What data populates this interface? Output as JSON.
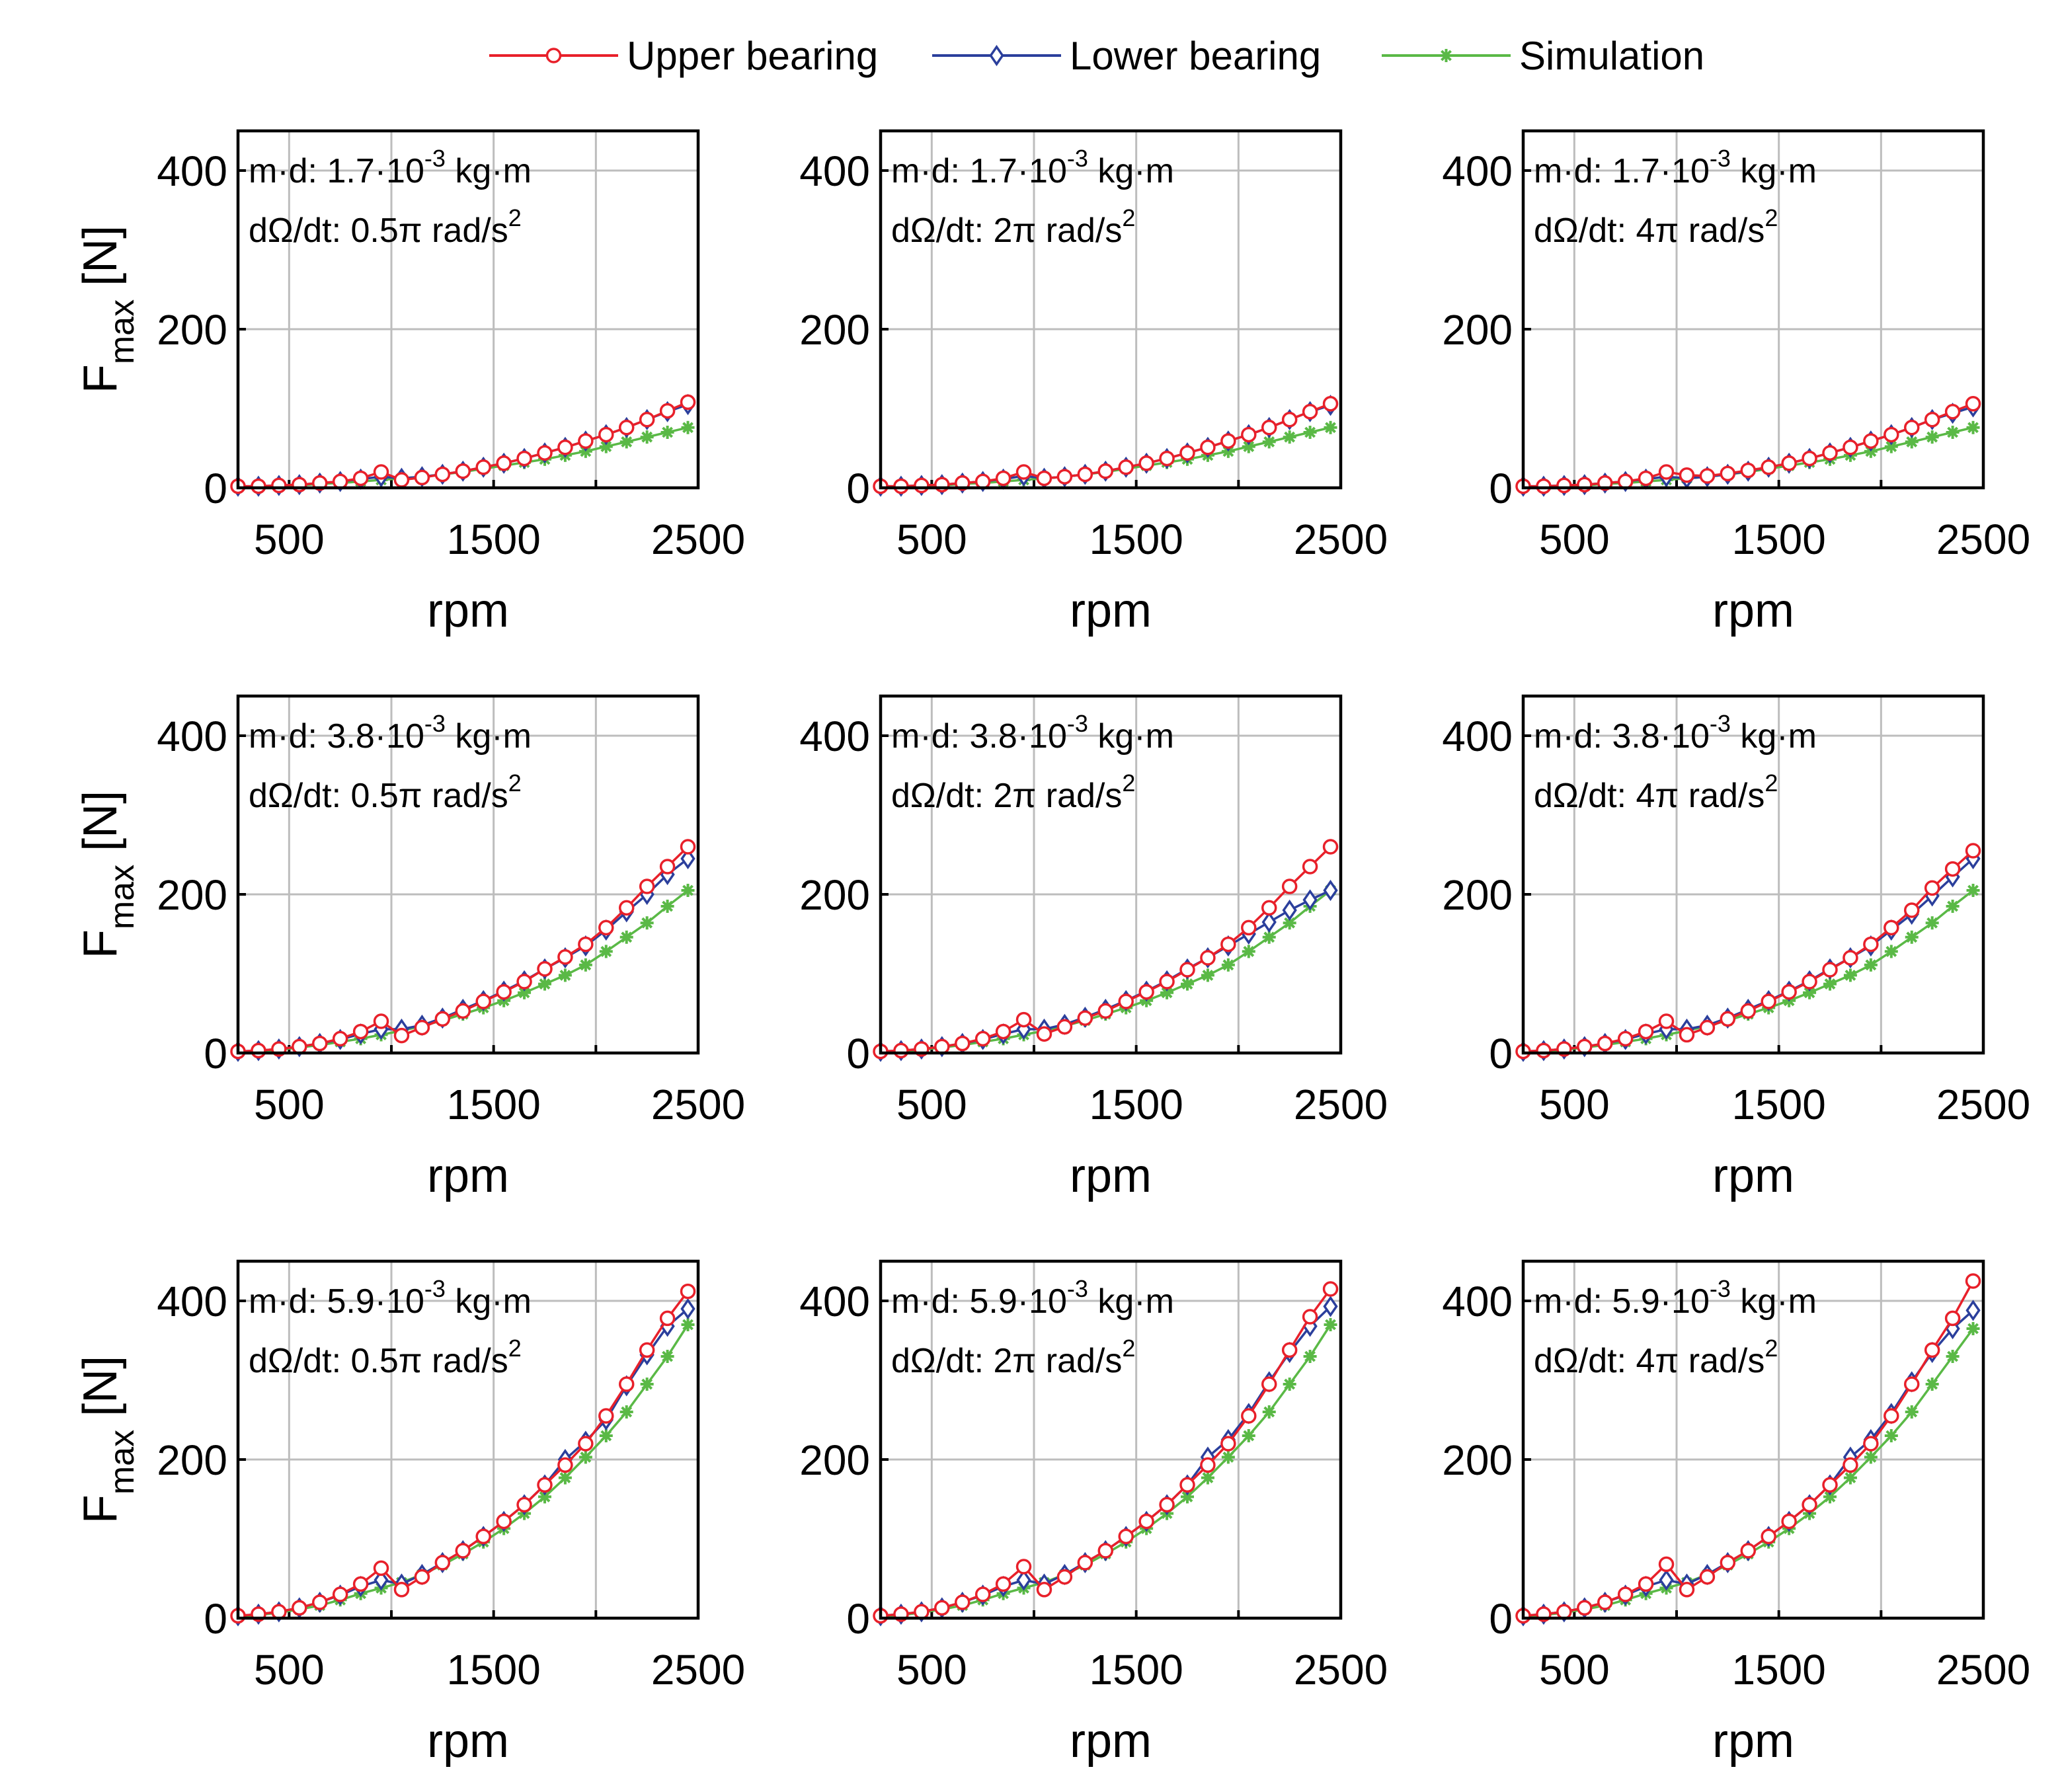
{
  "chart_data": {
    "type": "line",
    "layout": "3x3 grid",
    "xlabel": "rpm",
    "ylabel": "F_max [N]",
    "ylabel_main": "F",
    "ylabel_sub": "max",
    "ylabel_unit": "[N]",
    "xlim": [
      250,
      2500
    ],
    "ylim": [
      0,
      450
    ],
    "x_ticks": [
      500,
      1500,
      2500
    ],
    "y_ticks": [
      0,
      200,
      400
    ],
    "grid": true,
    "legend_position": "top-center",
    "legend": [
      {
        "name": "Upper bearing",
        "color": "#e8202a",
        "marker": "circle"
      },
      {
        "name": "Lower bearing",
        "color": "#2b3f9c",
        "marker": "diamond"
      },
      {
        "name": "Simulation",
        "color": "#5ab946",
        "marker": "asterisk"
      }
    ],
    "x": [
      250,
      350,
      450,
      550,
      650,
      750,
      850,
      950,
      1050,
      1150,
      1250,
      1350,
      1450,
      1550,
      1650,
      1750,
      1850,
      1950,
      2050,
      2150,
      2250,
      2350,
      2450
    ],
    "panels": [
      {
        "md_prefix": "m·d: 1.7·10",
        "md_exp": "-3",
        "md_unit": "kg·m",
        "rate_prefix": "dΩ/dt: 0.5π rad/s",
        "rate_exp": "2",
        "series": [
          {
            "name": "Upper bearing",
            "values": [
              2,
              2,
              3,
              4,
              6,
              8,
              12,
              20,
              10,
              13,
              17,
              21,
              26,
              31,
              37,
              44,
              51,
              59,
              67,
              76,
              86,
              97,
              108
            ]
          },
          {
            "name": "Lower bearing",
            "values": [
              2,
              2,
              3,
              4,
              6,
              8,
              11,
              14,
              12,
              14,
              17,
              21,
              26,
              31,
              37,
              44,
              51,
              59,
              67,
              76,
              86,
              96,
              105
            ]
          },
          {
            "name": "Simulation",
            "values": [
              1,
              1,
              2,
              3,
              5,
              6,
              8,
              10,
              12,
              14,
              17,
              20,
              24,
              28,
              32,
              36,
              41,
              46,
              52,
              58,
              64,
              70,
              76
            ]
          }
        ]
      },
      {
        "md_prefix": "m·d: 1.7·10",
        "md_exp": "-3",
        "md_unit": "kg·m",
        "rate_prefix": "dΩ/dt: 2π rad/s",
        "rate_exp": "2",
        "series": [
          {
            "name": "Upper bearing",
            "values": [
              2,
              2,
              3,
              4,
              6,
              8,
              12,
              20,
              12,
              14,
              17,
              21,
              26,
              31,
              37,
              44,
              51,
              59,
              67,
              76,
              86,
              96,
              106
            ]
          },
          {
            "name": "Lower bearing",
            "values": [
              2,
              2,
              3,
              4,
              6,
              8,
              11,
              15,
              12,
              14,
              17,
              21,
              26,
              31,
              37,
              44,
              51,
              59,
              67,
              76,
              86,
              96,
              104
            ]
          },
          {
            "name": "Simulation",
            "values": [
              1,
              1,
              2,
              3,
              5,
              6,
              8,
              10,
              12,
              14,
              17,
              20,
              24,
              28,
              32,
              36,
              41,
              46,
              52,
              58,
              64,
              70,
              76
            ]
          }
        ]
      },
      {
        "md_prefix": "m·d: 1.7·10",
        "md_exp": "-3",
        "md_unit": "kg·m",
        "rate_prefix": "dΩ/dt: 4π rad/s",
        "rate_exp": "2",
        "series": [
          {
            "name": "Upper bearing",
            "values": [
              2,
              2,
              3,
              4,
              6,
              8,
              12,
              20,
              16,
              15,
              18,
              22,
              26,
              31,
              37,
              44,
              51,
              59,
              67,
              76,
              86,
              96,
              106
            ]
          },
          {
            "name": "Lower bearing",
            "values": [
              2,
              2,
              3,
              4,
              6,
              8,
              11,
              14,
              12,
              14,
              17,
              21,
              26,
              31,
              37,
              44,
              51,
              59,
              67,
              76,
              86,
              94,
              102
            ]
          },
          {
            "name": "Simulation",
            "values": [
              1,
              1,
              2,
              3,
              5,
              6,
              8,
              10,
              12,
              14,
              17,
              20,
              24,
              28,
              32,
              36,
              41,
              46,
              52,
              58,
              64,
              70,
              76
            ]
          }
        ]
      },
      {
        "md_prefix": "m·d: 3.8·10",
        "md_exp": "-3",
        "md_unit": "kg·m",
        "rate_prefix": "dΩ/dt: 0.5π rad/s",
        "rate_exp": "2",
        "series": [
          {
            "name": "Upper bearing",
            "values": [
              2,
              3,
              5,
              8,
              12,
              18,
              27,
              40,
              22,
              32,
              43,
              53,
              65,
              77,
              90,
              106,
              121,
              137,
              158,
              183,
              210,
              235,
              260
            ]
          },
          {
            "name": "Lower bearing",
            "values": [
              2,
              3,
              5,
              8,
              12,
              17,
              24,
              30,
              30,
              35,
              44,
              55,
              66,
              78,
              91,
              106,
              120,
              135,
              155,
              178,
              200,
              225,
              245
            ]
          },
          {
            "name": "Simulation",
            "values": [
              1,
              2,
              4,
              7,
              10,
              14,
              18,
              23,
              28,
              34,
              41,
              49,
              57,
              66,
              76,
              87,
              98,
              111,
              128,
              146,
              164,
              185,
              205
            ]
          }
        ]
      },
      {
        "md_prefix": "m·d: 3.8·10",
        "md_exp": "-3",
        "md_unit": "kg·m",
        "rate_prefix": "dΩ/dt: 2π rad/s",
        "rate_exp": "2",
        "series": [
          {
            "name": "Upper bearing",
            "values": [
              2,
              3,
              5,
              8,
              12,
              18,
              27,
              42,
              24,
              33,
              44,
              53,
              65,
              77,
              90,
              105,
              120,
              137,
              158,
              183,
              210,
              235,
              260
            ]
          },
          {
            "name": "Lower bearing",
            "values": [
              2,
              3,
              5,
              8,
              12,
              17,
              24,
              30,
              30,
              36,
              45,
              55,
              66,
              78,
              91,
              106,
              120,
              135,
              150,
              165,
              180,
              193,
              205
            ]
          },
          {
            "name": "Simulation",
            "values": [
              1,
              2,
              4,
              7,
              10,
              14,
              18,
              23,
              28,
              34,
              41,
              49,
              57,
              66,
              76,
              87,
              98,
              111,
              128,
              146,
              164,
              185,
              205
            ]
          }
        ]
      },
      {
        "md_prefix": "m·d: 3.8·10",
        "md_exp": "-3",
        "md_unit": "kg·m",
        "rate_prefix": "dΩ/dt: 4π rad/s",
        "rate_exp": "2",
        "series": [
          {
            "name": "Upper bearing",
            "values": [
              2,
              3,
              5,
              8,
              12,
              18,
              27,
              40,
              23,
              32,
              43,
              53,
              65,
              77,
              90,
              105,
              120,
              137,
              158,
              180,
              208,
              232,
              255
            ]
          },
          {
            "name": "Lower bearing",
            "values": [
              2,
              3,
              5,
              8,
              12,
              17,
              24,
              30,
              30,
              35,
              44,
              55,
              66,
              78,
              91,
              106,
              120,
              135,
              155,
              175,
              198,
              222,
              245
            ]
          },
          {
            "name": "Simulation",
            "values": [
              1,
              2,
              4,
              7,
              10,
              14,
              18,
              23,
              28,
              34,
              41,
              49,
              57,
              66,
              76,
              87,
              98,
              111,
              128,
              146,
              164,
              185,
              205
            ]
          }
        ]
      },
      {
        "md_prefix": "m·d: 5.9·10",
        "md_exp": "-3",
        "md_unit": "kg·m",
        "rate_prefix": "dΩ/dt: 0.5π rad/s",
        "rate_exp": "2",
        "series": [
          {
            "name": "Upper bearing",
            "values": [
              3,
              5,
              8,
              13,
              20,
              30,
              43,
              63,
              36,
              52,
              70,
              85,
              103,
              122,
              143,
              168,
              193,
              220,
              255,
              295,
              338,
              378,
              412
            ]
          },
          {
            "name": "Lower bearing",
            "values": [
              3,
              5,
              8,
              13,
              20,
              29,
              40,
              48,
              43,
              55,
              70,
              85,
              103,
              122,
              143,
              168,
              200,
              223,
              250,
              293,
              332,
              368,
              390
            ]
          },
          {
            "name": "Simulation",
            "values": [
              2,
              4,
              7,
              11,
              16,
              23,
              31,
              38,
              45,
              55,
              67,
              81,
              96,
              113,
              132,
              153,
              177,
              203,
              230,
              260,
              295,
              330,
              370
            ]
          }
        ]
      },
      {
        "md_prefix": "m·d: 5.9·10",
        "md_exp": "-3",
        "md_unit": "kg·m",
        "rate_prefix": "dΩ/dt: 2π rad/s",
        "rate_exp": "2",
        "series": [
          {
            "name": "Upper bearing",
            "values": [
              3,
              5,
              8,
              13,
              20,
              30,
              43,
              65,
              36,
              52,
              70,
              85,
              103,
              122,
              143,
              168,
              193,
              220,
              255,
              295,
              338,
              380,
              415
            ]
          },
          {
            "name": "Lower bearing",
            "values": [
              3,
              5,
              8,
              13,
              20,
              29,
              40,
              48,
              43,
              55,
              70,
              85,
              103,
              122,
              143,
              168,
              203,
              225,
              258,
              298,
              335,
              368,
              393
            ]
          },
          {
            "name": "Simulation",
            "values": [
              2,
              4,
              7,
              11,
              16,
              23,
              31,
              38,
              45,
              55,
              67,
              81,
              96,
              113,
              132,
              153,
              177,
              203,
              230,
              260,
              295,
              330,
              370
            ]
          }
        ]
      },
      {
        "md_prefix": "m·d: 5.9·10",
        "md_exp": "-3",
        "md_unit": "kg·m",
        "rate_prefix": "dΩ/dt: 4π rad/s",
        "rate_exp": "2",
        "series": [
          {
            "name": "Upper bearing",
            "values": [
              3,
              5,
              8,
              13,
              20,
              30,
              43,
              68,
              36,
              52,
              70,
              85,
              103,
              122,
              143,
              168,
              193,
              220,
              255,
              295,
              338,
              378,
              425
            ]
          },
          {
            "name": "Lower bearing",
            "values": [
              3,
              5,
              8,
              13,
              20,
              29,
              40,
              48,
              43,
              55,
              70,
              85,
              103,
              122,
              143,
              168,
              203,
              225,
              258,
              298,
              335,
              365,
              388
            ]
          },
          {
            "name": "Simulation",
            "values": [
              2,
              4,
              7,
              11,
              16,
              23,
              31,
              38,
              45,
              55,
              67,
              81,
              96,
              113,
              132,
              153,
              177,
              203,
              230,
              260,
              295,
              330,
              365
            ]
          }
        ]
      }
    ]
  }
}
